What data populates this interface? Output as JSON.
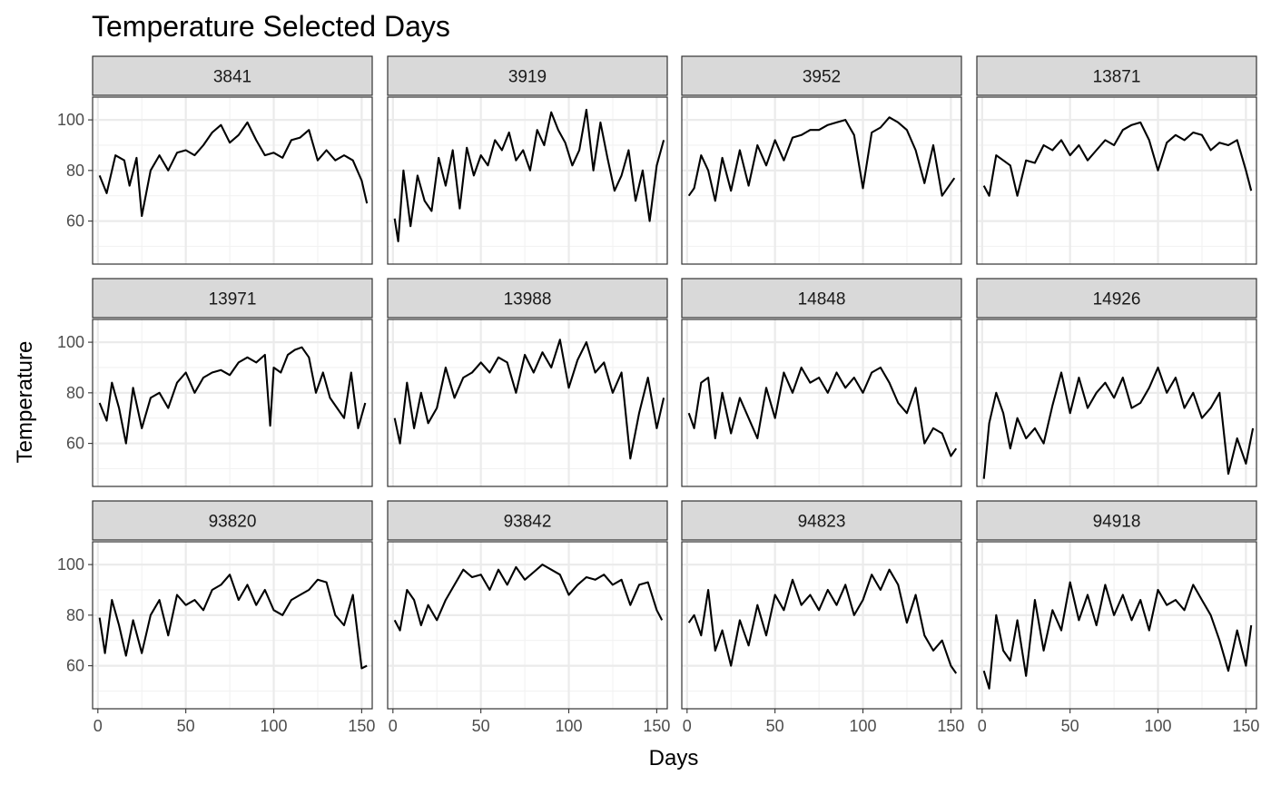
{
  "chart_data": {
    "type": "line",
    "title": "Temperature Selected Days",
    "xlabel": "Days",
    "ylabel": "Temperature",
    "xlim": [
      -3,
      156
    ],
    "ylim": [
      43,
      109
    ],
    "x_ticks": [
      0,
      50,
      100,
      150
    ],
    "y_ticks": [
      60,
      80,
      100
    ],
    "grid": true,
    "layout": {
      "rows": 3,
      "cols": 4
    },
    "colors": {
      "line": "#000000",
      "strip": "#d9d9d9",
      "grid": "#ebebeb"
    },
    "panels": [
      {
        "label": "3841",
        "series": [
          {
            "x": [
              1,
              5,
              10,
              15,
              18,
              22,
              25,
              30,
              35,
              40,
              45,
              50,
              55,
              60,
              65,
              70,
              75,
              80,
              85,
              90,
              95,
              100,
              105,
              110,
              115,
              120,
              125,
              130,
              135,
              140,
              145,
              150,
              153
            ],
            "y": [
              78,
              71,
              86,
              84,
              74,
              85,
              62,
              80,
              86,
              80,
              87,
              88,
              86,
              90,
              95,
              98,
              91,
              94,
              99,
              92,
              86,
              87,
              85,
              92,
              93,
              96,
              84,
              88,
              84,
              86,
              84,
              76,
              67
            ]
          }
        ]
      },
      {
        "label": "3919",
        "series": [
          {
            "x": [
              1,
              3,
              6,
              10,
              14,
              18,
              22,
              26,
              30,
              34,
              38,
              42,
              46,
              50,
              54,
              58,
              62,
              66,
              70,
              74,
              78,
              82,
              86,
              90,
              94,
              98,
              102,
              106,
              110,
              114,
              118,
              122,
              126,
              130,
              134,
              138,
              142,
              146,
              150,
              154
            ],
            "y": [
              61,
              52,
              80,
              58,
              78,
              68,
              64,
              85,
              74,
              88,
              65,
              89,
              78,
              86,
              82,
              92,
              88,
              95,
              84,
              88,
              80,
              96,
              90,
              103,
              96,
              91,
              82,
              88,
              104,
              80,
              99,
              85,
              72,
              78,
              88,
              68,
              80,
              60,
              82,
              92
            ]
          }
        ]
      },
      {
        "label": "3952",
        "series": [
          {
            "x": [
              1,
              4,
              8,
              12,
              16,
              20,
              25,
              30,
              35,
              40,
              45,
              50,
              55,
              60,
              65,
              70,
              75,
              80,
              85,
              90,
              95,
              100,
              105,
              110,
              115,
              120,
              125,
              130,
              135,
              140,
              145,
              152
            ],
            "y": [
              70,
              73,
              86,
              80,
              68,
              85,
              72,
              88,
              74,
              90,
              82,
              92,
              84,
              93,
              94,
              96,
              96,
              98,
              99,
              100,
              94,
              73,
              95,
              97,
              101,
              99,
              96,
              88,
              75,
              90,
              70,
              77
            ]
          }
        ]
      },
      {
        "label": "13871",
        "series": [
          {
            "x": [
              1,
              4,
              8,
              12,
              16,
              20,
              25,
              30,
              35,
              40,
              45,
              50,
              55,
              60,
              65,
              70,
              75,
              80,
              85,
              90,
              95,
              100,
              105,
              110,
              115,
              120,
              125,
              130,
              135,
              140,
              145,
              150,
              153
            ],
            "y": [
              74,
              70,
              86,
              84,
              82,
              70,
              84,
              83,
              90,
              88,
              92,
              86,
              90,
              84,
              88,
              92,
              90,
              96,
              98,
              99,
              92,
              80,
              91,
              94,
              92,
              95,
              94,
              88,
              91,
              90,
              92,
              80,
              72
            ]
          }
        ]
      },
      {
        "label": "13971",
        "series": [
          {
            "x": [
              1,
              5,
              8,
              12,
              16,
              20,
              25,
              30,
              35,
              40,
              45,
              50,
              55,
              60,
              65,
              70,
              75,
              80,
              85,
              90,
              95,
              98,
              100,
              104,
              108,
              112,
              116,
              120,
              124,
              128,
              132,
              136,
              140,
              144,
              148,
              152
            ],
            "y": [
              76,
              69,
              84,
              74,
              60,
              82,
              66,
              78,
              80,
              74,
              84,
              88,
              80,
              86,
              88,
              89,
              87,
              92,
              94,
              92,
              95,
              67,
              90,
              88,
              95,
              97,
              98,
              94,
              80,
              88,
              78,
              74,
              70,
              88,
              66,
              76
            ]
          }
        ]
      },
      {
        "label": "13988",
        "series": [
          {
            "x": [
              1,
              4,
              8,
              12,
              16,
              20,
              25,
              30,
              35,
              40,
              45,
              50,
              55,
              60,
              65,
              70,
              75,
              80,
              85,
              90,
              95,
              100,
              105,
              110,
              115,
              120,
              125,
              130,
              135,
              140,
              145,
              150,
              154
            ],
            "y": [
              70,
              60,
              84,
              66,
              80,
              68,
              74,
              90,
              78,
              86,
              88,
              92,
              88,
              94,
              92,
              80,
              95,
              88,
              96,
              90,
              101,
              82,
              93,
              100,
              88,
              92,
              80,
              88,
              54,
              72,
              86,
              66,
              78
            ]
          }
        ]
      },
      {
        "label": "14848",
        "series": [
          {
            "x": [
              1,
              4,
              8,
              12,
              16,
              20,
              25,
              30,
              35,
              40,
              45,
              50,
              55,
              60,
              65,
              70,
              75,
              80,
              85,
              90,
              95,
              100,
              105,
              110,
              115,
              120,
              125,
              130,
              135,
              140,
              145,
              150,
              153
            ],
            "y": [
              72,
              66,
              84,
              86,
              62,
              80,
              64,
              78,
              70,
              62,
              82,
              70,
              88,
              80,
              90,
              84,
              86,
              80,
              88,
              82,
              86,
              80,
              88,
              90,
              84,
              76,
              72,
              82,
              60,
              66,
              64,
              55,
              58
            ]
          }
        ]
      },
      {
        "label": "14926",
        "series": [
          {
            "x": [
              1,
              4,
              8,
              12,
              16,
              20,
              25,
              30,
              35,
              40,
              45,
              50,
              55,
              60,
              65,
              70,
              75,
              80,
              85,
              90,
              95,
              100,
              105,
              110,
              115,
              120,
              125,
              130,
              135,
              140,
              145,
              150,
              154
            ],
            "y": [
              46,
              68,
              80,
              72,
              58,
              70,
              62,
              66,
              60,
              75,
              88,
              72,
              86,
              74,
              80,
              84,
              78,
              86,
              74,
              76,
              82,
              90,
              80,
              86,
              74,
              80,
              70,
              74,
              80,
              48,
              62,
              52,
              66
            ]
          }
        ]
      },
      {
        "label": "93820",
        "series": [
          {
            "x": [
              1,
              4,
              8,
              12,
              16,
              20,
              25,
              30,
              35,
              40,
              45,
              50,
              55,
              60,
              65,
              70,
              75,
              80,
              85,
              90,
              95,
              100,
              105,
              110,
              115,
              120,
              125,
              130,
              135,
              140,
              145,
              150,
              153
            ],
            "y": [
              79,
              65,
              86,
              76,
              64,
              78,
              65,
              80,
              86,
              72,
              88,
              84,
              86,
              82,
              90,
              92,
              96,
              86,
              92,
              84,
              90,
              82,
              80,
              86,
              88,
              90,
              94,
              93,
              80,
              76,
              88,
              59,
              60
            ]
          }
        ]
      },
      {
        "label": "93842",
        "series": [
          {
            "x": [
              1,
              4,
              8,
              12,
              16,
              20,
              25,
              30,
              35,
              40,
              45,
              50,
              55,
              60,
              65,
              70,
              75,
              80,
              85,
              90,
              95,
              100,
              105,
              110,
              115,
              120,
              125,
              130,
              135,
              140,
              145,
              150,
              153
            ],
            "y": [
              78,
              74,
              90,
              86,
              76,
              84,
              78,
              86,
              92,
              98,
              95,
              96,
              90,
              98,
              92,
              99,
              94,
              97,
              100,
              98,
              96,
              88,
              92,
              95,
              94,
              96,
              92,
              94,
              84,
              92,
              93,
              82,
              78
            ]
          }
        ]
      },
      {
        "label": "94823",
        "series": [
          {
            "x": [
              1,
              4,
              8,
              12,
              16,
              20,
              25,
              30,
              35,
              40,
              45,
              50,
              55,
              60,
              65,
              70,
              75,
              80,
              85,
              90,
              95,
              100,
              105,
              110,
              115,
              120,
              125,
              130,
              135,
              140,
              145,
              150,
              153
            ],
            "y": [
              77,
              80,
              72,
              90,
              66,
              74,
              60,
              78,
              68,
              84,
              72,
              88,
              82,
              94,
              84,
              88,
              82,
              90,
              84,
              92,
              80,
              86,
              96,
              90,
              98,
              92,
              77,
              88,
              72,
              66,
              70,
              60,
              57
            ]
          }
        ]
      },
      {
        "label": "94918",
        "series": [
          {
            "x": [
              1,
              4,
              8,
              12,
              16,
              20,
              25,
              30,
              35,
              40,
              45,
              50,
              55,
              60,
              65,
              70,
              75,
              80,
              85,
              90,
              95,
              100,
              105,
              110,
              115,
              120,
              125,
              130,
              135,
              140,
              145,
              150,
              153
            ],
            "y": [
              58,
              51,
              80,
              66,
              62,
              78,
              56,
              86,
              66,
              82,
              74,
              93,
              78,
              88,
              76,
              92,
              80,
              88,
              78,
              86,
              74,
              90,
              84,
              86,
              82,
              92,
              86,
              80,
              70,
              58,
              74,
              60,
              76
            ]
          }
        ]
      }
    ]
  }
}
